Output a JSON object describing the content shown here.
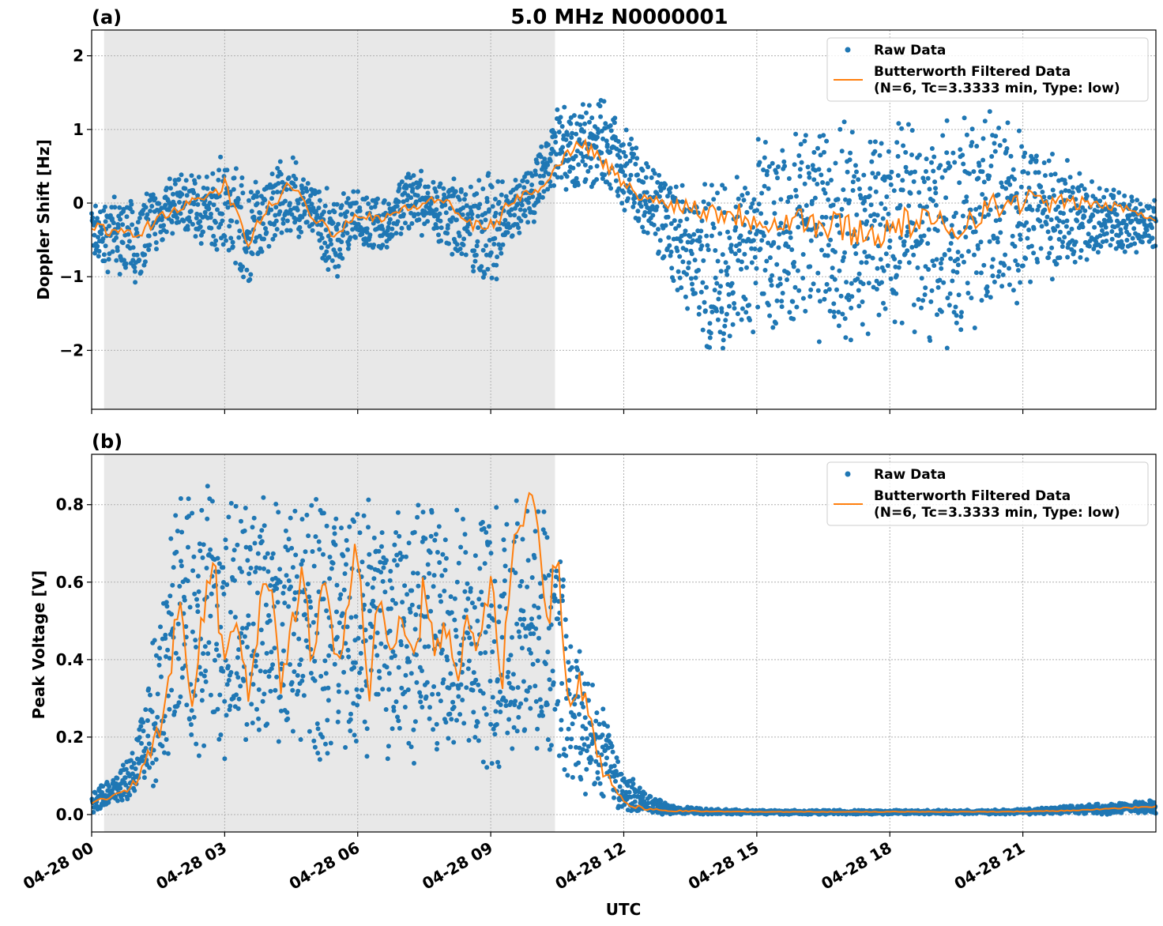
{
  "figure": {
    "title": "5.0 MHz N0000001",
    "xlabel": "UTC"
  },
  "chart_data": [
    {
      "type": "scatter",
      "panel_label": "(a)",
      "ylabel": "Doppler Shift [Hz]",
      "xlim": [
        0,
        24
      ],
      "ylim": [
        -2.8,
        2.35
      ],
      "yticks": [
        -2,
        -1,
        0,
        1,
        2
      ],
      "ytick_labels": [
        "−2",
        "−1",
        "0",
        "1",
        "2"
      ],
      "xticks": [
        0,
        3,
        6,
        9,
        12,
        15,
        18,
        21
      ],
      "xtick_labels": [
        "04-28 00",
        "04-28 03",
        "04-28 06",
        "04-28 09",
        "04-28 12",
        "04-28 15",
        "04-28 18",
        "04-28 21"
      ],
      "grid": true,
      "shaded_region_hours": [
        0.28,
        10.45
      ],
      "legend": {
        "location": "top-right",
        "entries": [
          "Raw Data",
          "Butterworth Filtered Data",
          "(N=6, Tc=3.3333 min, Type: low)"
        ]
      },
      "series": [
        {
          "name": "Raw Data",
          "kind": "band",
          "color": "#1f77b4",
          "x": [
            0,
            0.5,
            1,
            1.5,
            2,
            2.5,
            3,
            3.5,
            4,
            4.5,
            5,
            5.5,
            6,
            6.5,
            7,
            7.5,
            8,
            8.5,
            9,
            9.5,
            10,
            10.5,
            11,
            11.5,
            12,
            12.5,
            13,
            13.5,
            14,
            14.5,
            15,
            15.5,
            16,
            16.5,
            17,
            17.5,
            18,
            18.5,
            19,
            19.5,
            20,
            20.5,
            21,
            21.5,
            22,
            22.5,
            23,
            23.5,
            24
          ],
          "upper": [
            0.05,
            0.1,
            0.15,
            0.3,
            0.45,
            0.4,
            0.8,
            0.35,
            0.55,
            0.7,
            0.35,
            0.15,
            0.25,
            0.15,
            0.45,
            0.5,
            0.4,
            0.35,
            0.5,
            0.4,
            0.7,
            1.3,
            1.4,
            1.55,
            1.05,
            0.7,
            0.4,
            0.35,
            0.45,
            0.5,
            1.0,
            0.9,
            1.1,
            1.2,
            1.3,
            1.15,
            1.2,
            1.3,
            1.2,
            1.5,
            1.3,
            1.4,
            1.05,
            1.0,
            0.6,
            0.35,
            0.25,
            0.15,
            0.1
          ],
          "lower": [
            -0.85,
            -1.0,
            -1.2,
            -0.7,
            -0.45,
            -0.6,
            -0.8,
            -1.35,
            -0.6,
            -0.5,
            -0.55,
            -1.2,
            -0.6,
            -0.8,
            -0.45,
            -0.5,
            -0.7,
            -0.85,
            -1.3,
            -0.5,
            -0.25,
            0.2,
            0.1,
            0.1,
            -0.15,
            -0.45,
            -1.0,
            -1.6,
            -2.3,
            -2.0,
            -2.1,
            -1.9,
            -2.0,
            -2.1,
            -2.1,
            -2.0,
            -2.0,
            -1.8,
            -2.0,
            -2.2,
            -1.7,
            -1.6,
            -1.5,
            -1.2,
            -0.9,
            -0.8,
            -0.8,
            -0.7,
            -0.6
          ]
        },
        {
          "name": "Butterworth Filtered Data",
          "kind": "line",
          "color": "#ff7f0e",
          "x": [
            0,
            0.5,
            1,
            1.5,
            2,
            2.5,
            3,
            3.5,
            4,
            4.5,
            5,
            5.5,
            6,
            6.5,
            7,
            7.5,
            8,
            8.5,
            9,
            9.5,
            10,
            10.5,
            11,
            11.5,
            12,
            12.5,
            13,
            13.5,
            14,
            14.5,
            15,
            15.5,
            16,
            16.5,
            17,
            17.5,
            18,
            18.5,
            19,
            19.5,
            20,
            20.5,
            21,
            21.5,
            22,
            22.5,
            23,
            23.5,
            24
          ],
          "y": [
            -0.3,
            -0.4,
            -0.45,
            -0.2,
            -0.05,
            0.05,
            0.25,
            -0.55,
            -0.05,
            0.25,
            -0.2,
            -0.4,
            -0.15,
            -0.2,
            -0.1,
            0.0,
            0.05,
            -0.3,
            -0.35,
            0.05,
            0.15,
            0.5,
            0.85,
            0.6,
            0.25,
            0.05,
            0.0,
            -0.05,
            -0.1,
            -0.15,
            -0.2,
            -0.25,
            -0.2,
            -0.35,
            -0.3,
            -0.45,
            -0.35,
            -0.25,
            -0.3,
            -0.35,
            -0.1,
            -0.05,
            0.05,
            0.0,
            0.0,
            0.0,
            -0.05,
            -0.1,
            -0.2
          ]
        }
      ]
    },
    {
      "type": "scatter",
      "panel_label": "(b)",
      "ylabel": "Peak Voltage [V]",
      "xlim": [
        0,
        24
      ],
      "ylim": [
        -0.045,
        0.93
      ],
      "yticks": [
        0.0,
        0.2,
        0.4,
        0.6,
        0.8
      ],
      "ytick_labels": [
        "0.0",
        "0.2",
        "0.4",
        "0.6",
        "0.8"
      ],
      "xticks": [
        0,
        3,
        6,
        9,
        12,
        15,
        18,
        21
      ],
      "xtick_labels": [
        "04-28 00",
        "04-28 03",
        "04-28 06",
        "04-28 09",
        "04-28 12",
        "04-28 15",
        "04-28 18",
        "04-28 21"
      ],
      "grid": true,
      "shaded_region_hours": [
        0.28,
        10.45
      ],
      "legend": {
        "location": "top-right",
        "entries": [
          "Raw Data",
          "Butterworth Filtered Data",
          "(N=6, Tc=3.3333 min, Type: low)"
        ]
      },
      "series": [
        {
          "name": "Raw Data",
          "kind": "band",
          "color": "#1f77b4",
          "x": [
            0,
            0.5,
            1,
            1.5,
            2,
            2.5,
            3,
            3.5,
            4,
            4.5,
            5,
            5.5,
            6,
            6.5,
            7,
            7.5,
            8,
            8.5,
            9,
            9.5,
            10,
            10.5,
            11,
            11.5,
            12,
            12.5,
            13,
            13.5,
            14,
            15,
            16,
            17,
            18,
            19,
            20,
            21,
            22,
            23,
            24
          ],
          "upper": [
            0.08,
            0.1,
            0.2,
            0.55,
            0.85,
            0.87,
            0.85,
            0.86,
            0.87,
            0.86,
            0.87,
            0.87,
            0.85,
            0.87,
            0.86,
            0.87,
            0.86,
            0.87,
            0.88,
            0.87,
            0.85,
            0.7,
            0.45,
            0.3,
            0.12,
            0.06,
            0.03,
            0.02,
            0.015,
            0.012,
            0.012,
            0.012,
            0.012,
            0.012,
            0.012,
            0.015,
            0.025,
            0.03,
            0.04
          ],
          "lower": [
            0.0,
            0.02,
            0.03,
            0.06,
            0.1,
            0.12,
            0.1,
            0.12,
            0.1,
            0.1,
            0.09,
            0.1,
            0.1,
            0.09,
            0.08,
            0.1,
            0.09,
            0.08,
            0.08,
            0.1,
            0.12,
            0.06,
            0.02,
            0.01,
            0.0,
            0.0,
            0.0,
            0.0,
            0.0,
            0.0,
            0.0,
            0.0,
            0.0,
            0.0,
            0.0,
            0.0,
            0.0,
            0.0,
            0.0
          ]
        },
        {
          "name": "Butterworth Filtered Data",
          "kind": "line",
          "color": "#ff7f0e",
          "x": [
            0,
            0.5,
            1,
            1.5,
            2,
            2.25,
            2.5,
            2.75,
            3,
            3.25,
            3.5,
            3.75,
            4,
            4.25,
            4.5,
            4.75,
            5,
            5.25,
            5.5,
            5.75,
            6,
            6.25,
            6.5,
            6.75,
            7,
            7.25,
            7.5,
            7.75,
            8,
            8.25,
            8.5,
            8.75,
            9,
            9.25,
            9.5,
            9.75,
            10,
            10.25,
            10.5,
            10.75,
            11,
            11.5,
            12,
            12.5,
            13,
            14,
            15,
            16,
            17,
            18,
            19,
            20,
            21,
            22,
            23,
            24
          ],
          "y": [
            0.03,
            0.05,
            0.08,
            0.2,
            0.55,
            0.3,
            0.5,
            0.65,
            0.35,
            0.55,
            0.3,
            0.5,
            0.6,
            0.35,
            0.45,
            0.6,
            0.4,
            0.65,
            0.35,
            0.5,
            0.7,
            0.3,
            0.6,
            0.45,
            0.55,
            0.35,
            0.6,
            0.4,
            0.5,
            0.3,
            0.55,
            0.4,
            0.65,
            0.35,
            0.7,
            0.75,
            0.82,
            0.45,
            0.7,
            0.25,
            0.35,
            0.12,
            0.03,
            0.015,
            0.01,
            0.008,
            0.007,
            0.007,
            0.007,
            0.007,
            0.007,
            0.007,
            0.008,
            0.01,
            0.015,
            0.02
          ]
        }
      ]
    }
  ]
}
